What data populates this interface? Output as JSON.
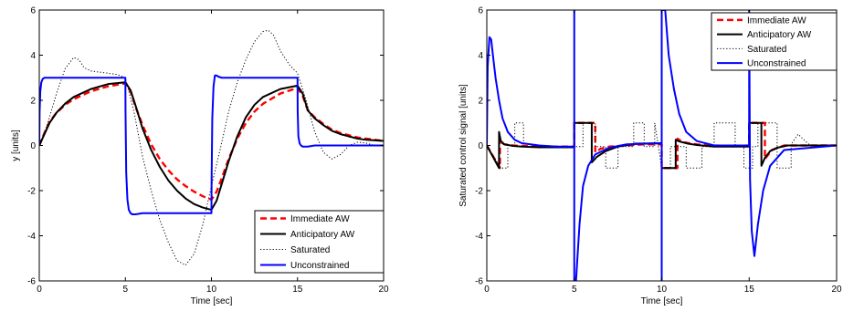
{
  "chart_data": [
    {
      "type": "line",
      "xlabel": "Time [sec]",
      "ylabel": "y [units]",
      "xlim": [
        0,
        20
      ],
      "ylim": [
        -6,
        6
      ],
      "xticks": [
        0,
        5,
        10,
        15,
        20
      ],
      "yticks": [
        -6,
        -4,
        -2,
        0,
        2,
        4,
        6
      ],
      "grid": false,
      "legend_position": "bottom-right",
      "series": [
        {
          "name": "Immediate AW",
          "color": "#ff0000",
          "style": "dashed",
          "x": [
            0,
            0.3,
            0.6,
            1,
            1.5,
            2,
            3,
            4,
            5,
            5.3,
            5.6,
            6,
            6.5,
            7,
            7.5,
            8,
            8.5,
            9,
            9.5,
            10,
            10.3,
            10.6,
            11,
            11.5,
            12,
            12.5,
            13,
            14,
            15,
            15.3,
            15.6,
            16,
            16.5,
            17,
            17.5,
            18,
            18.5,
            19,
            20
          ],
          "y": [
            0,
            0.55,
            1.05,
            1.45,
            1.8,
            2.05,
            2.4,
            2.62,
            2.75,
            2.4,
            1.7,
            0.9,
            0.05,
            -0.6,
            -1.1,
            -1.5,
            -1.8,
            -2.05,
            -2.25,
            -2.4,
            -2.05,
            -1.45,
            -0.6,
            0.3,
            1.0,
            1.5,
            1.85,
            2.3,
            2.55,
            2.2,
            1.55,
            1.25,
            0.95,
            0.7,
            0.55,
            0.45,
            0.35,
            0.3,
            0.2
          ]
        },
        {
          "name": "Anticipatory AW",
          "color": "#000000",
          "style": "solid",
          "x": [
            0,
            0.3,
            0.6,
            1,
            1.5,
            2,
            3,
            4,
            5,
            5.3,
            5.6,
            6,
            6.5,
            7,
            7.5,
            8,
            8.5,
            9,
            9.5,
            10,
            10.3,
            10.6,
            11,
            11.5,
            12,
            12.5,
            13,
            14,
            15,
            15.3,
            15.6,
            16,
            16.5,
            17,
            17.5,
            18,
            18.5,
            19,
            20
          ],
          "y": [
            0,
            0.5,
            1.0,
            1.45,
            1.85,
            2.15,
            2.5,
            2.72,
            2.8,
            2.45,
            1.75,
            0.75,
            -0.2,
            -0.95,
            -1.55,
            -2.0,
            -2.35,
            -2.6,
            -2.75,
            -2.85,
            -2.45,
            -1.7,
            -0.7,
            0.4,
            1.25,
            1.8,
            2.15,
            2.5,
            2.65,
            2.3,
            1.55,
            1.2,
            0.9,
            0.65,
            0.5,
            0.4,
            0.3,
            0.25,
            0.2
          ]
        },
        {
          "name": "Saturated",
          "color": "#000000",
          "style": "dotted",
          "x": [
            0,
            0.5,
            1,
            1.5,
            2,
            2.3,
            2.6,
            3,
            3.5,
            4,
            4.5,
            5,
            5.5,
            6,
            6.5,
            7,
            7.5,
            8,
            8.5,
            9,
            9.5,
            10,
            10.5,
            11,
            11.5,
            12,
            12.5,
            13,
            13.3,
            13.6,
            14,
            14.5,
            15,
            15.5,
            16,
            16.5,
            17,
            17.5,
            18,
            18.5,
            19,
            19.5,
            20
          ],
          "y": [
            0,
            1.0,
            2.3,
            3.4,
            3.9,
            3.8,
            3.45,
            3.3,
            3.25,
            3.2,
            3.15,
            3.0,
            1.5,
            -0.5,
            -2.0,
            -3.3,
            -4.3,
            -5.1,
            -5.3,
            -4.8,
            -3.5,
            -1.8,
            -0.2,
            1.5,
            2.8,
            3.8,
            4.6,
            5.05,
            5.1,
            4.9,
            4.2,
            3.6,
            3.2,
            2.0,
            0.6,
            -0.3,
            -0.6,
            -0.4,
            0.0,
            0.15,
            0.1,
            0.0,
            0.0
          ]
        },
        {
          "name": "Unconstrained",
          "color": "#0000ff",
          "style": "solid",
          "x": [
            0,
            0.02,
            0.06,
            0.12,
            0.2,
            0.3,
            0.4,
            0.6,
            1,
            5,
            5.01,
            5.05,
            5.12,
            5.2,
            5.3,
            5.4,
            5.6,
            6,
            10,
            10.01,
            10.05,
            10.12,
            10.2,
            10.3,
            10.4,
            10.6,
            11,
            15,
            15.01,
            15.05,
            15.12,
            15.2,
            15.3,
            15.4,
            15.6,
            16,
            20
          ],
          "y": [
            0,
            1.5,
            2.4,
            2.8,
            2.95,
            3.0,
            3.0,
            3.0,
            3.0,
            3.0,
            1.5,
            -1.2,
            -2.4,
            -2.85,
            -3.0,
            -3.05,
            -3.05,
            -3.0,
            -3.0,
            -1.5,
            1.2,
            2.6,
            3.1,
            3.1,
            3.05,
            3.0,
            3.0,
            3.0,
            1.5,
            0.4,
            0.1,
            0.0,
            -0.05,
            -0.05,
            -0.05,
            0.0,
            0.0
          ]
        }
      ]
    },
    {
      "type": "line",
      "xlabel": "Time [sec]",
      "ylabel": "Saturated control signal [units]",
      "xlim": [
        0,
        20
      ],
      "ylim": [
        -6,
        6
      ],
      "xticks": [
        0,
        5,
        10,
        15,
        20
      ],
      "yticks": [
        -6,
        -4,
        -2,
        0,
        2,
        4,
        6
      ],
      "grid": false,
      "legend_position": "top-right",
      "series": [
        {
          "name": "Immediate AW",
          "color": "#ff0000",
          "style": "dashed",
          "x": [
            0,
            0.75,
            0.75,
            0.8,
            1,
            1.5,
            2,
            3,
            4,
            5,
            5,
            6.2,
            6.2,
            6.5,
            7,
            8,
            9,
            10,
            10,
            10.9,
            10.9,
            11.2,
            12,
            13,
            14,
            15,
            15,
            15.9,
            15.9,
            16.3,
            17,
            18,
            19,
            20
          ],
          "y": [
            0,
            -1,
            0.3,
            0.15,
            0.05,
            0,
            -0.02,
            -0.05,
            -0.05,
            -0.05,
            1,
            1,
            -0.3,
            -0.15,
            -0.05,
            0,
            0.05,
            0.05,
            -1,
            -1,
            0.3,
            0.15,
            0.05,
            0,
            -0.02,
            0,
            1,
            1,
            -0.6,
            -0.2,
            0,
            0,
            0,
            0
          ]
        },
        {
          "name": "Anticipatory AW",
          "color": "#000000",
          "style": "solid",
          "x": [
            0,
            0.7,
            0.7,
            0.8,
            1,
            1.5,
            2,
            3,
            4,
            5,
            5,
            6.0,
            6.0,
            6.3,
            6.8,
            7.5,
            8.5,
            10,
            10,
            10.8,
            10.8,
            11.0,
            11.5,
            12,
            13,
            15,
            15,
            15.7,
            15.7,
            15.9,
            16.2,
            16.6,
            17.2,
            18,
            20
          ],
          "y": [
            0,
            -1,
            0.6,
            0.2,
            0.05,
            -0.02,
            -0.05,
            -0.08,
            -0.08,
            -0.08,
            1,
            1,
            -0.75,
            -0.5,
            -0.25,
            -0.05,
            0.08,
            0.1,
            -1,
            -1,
            0.25,
            0.18,
            0.08,
            0.02,
            -0.05,
            -0.05,
            1,
            1,
            -0.9,
            -0.55,
            -0.25,
            -0.1,
            0,
            0,
            0
          ]
        },
        {
          "name": "Saturated",
          "color": "#000000",
          "style": "dotted",
          "x": [
            0,
            0.8,
            1.2,
            1.2,
            1.6,
            1.6,
            2.1,
            2.1,
            5,
            5.5,
            5.5,
            6.2,
            6.2,
            6.8,
            6.8,
            7.5,
            7.5,
            8.4,
            8.4,
            9.0,
            9.0,
            9.6,
            9.6,
            10,
            10.5,
            10.5,
            11.4,
            11.4,
            12.3,
            12.3,
            13,
            13,
            14.2,
            14.2,
            14.7,
            14.7,
            15.2,
            15.2,
            15.5,
            15.5,
            16.6,
            16.6,
            17.4,
            17.4,
            17.8,
            18.2,
            18.5,
            19,
            20
          ],
          "y": [
            0,
            -1,
            -1,
            0,
            0,
            1,
            1,
            -0.05,
            -0.05,
            -0.05,
            1,
            1,
            -0.05,
            -0.05,
            -1,
            -1,
            -0.05,
            -0.05,
            1,
            1,
            -0.05,
            -0.05,
            1,
            -1,
            -1,
            -0.05,
            -0.05,
            -1,
            -1,
            -0.05,
            -0.05,
            1,
            1,
            -0.05,
            -0.05,
            -1,
            -1,
            -0.05,
            -0.05,
            1,
            1,
            -1,
            -1,
            0.05,
            0.5,
            0.2,
            0,
            0,
            0
          ]
        },
        {
          "name": "Unconstrained",
          "color": "#0000ff",
          "style": "solid",
          "x": [
            0,
            0.05,
            0.15,
            0.25,
            0.35,
            0.5,
            0.7,
            0.9,
            1.2,
            1.6,
            2,
            3,
            4,
            5,
            5,
            5.0,
            5.1,
            5.3,
            5.5,
            5.8,
            6.2,
            7,
            8,
            10,
            10,
            10.0,
            10.2,
            10.4,
            10.7,
            11.0,
            11.4,
            12,
            13,
            15,
            15,
            15.05,
            15.15,
            15.3,
            15.5,
            15.8,
            16.2,
            17,
            20
          ],
          "y": [
            0,
            3.5,
            4.8,
            4.7,
            4.0,
            3.0,
            2.0,
            1.2,
            0.6,
            0.25,
            0.1,
            0,
            -0.05,
            -0.05,
            6,
            -6,
            -6,
            -3.5,
            -1.8,
            -0.9,
            -0.4,
            -0.1,
            0.05,
            0.1,
            -6,
            6,
            6,
            4.0,
            2.5,
            1.4,
            0.6,
            0.2,
            0,
            0,
            6,
            -1.5,
            -3.8,
            -4.9,
            -3.5,
            -2.0,
            -0.9,
            -0.2,
            0
          ]
        }
      ]
    }
  ]
}
